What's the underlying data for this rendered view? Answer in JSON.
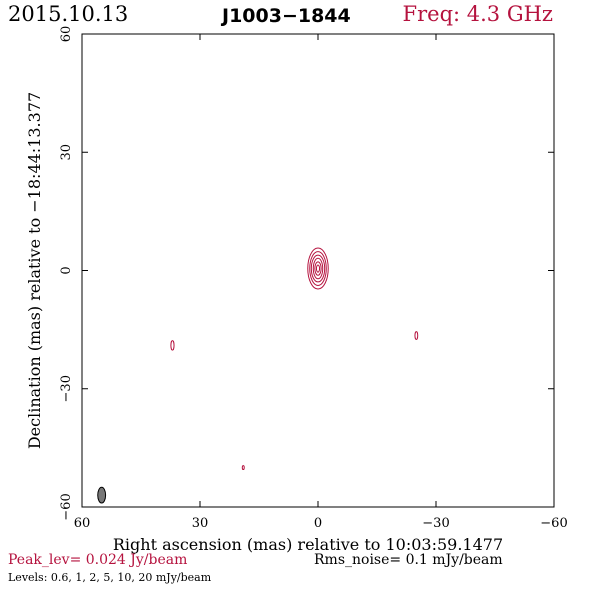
{
  "header": {
    "date": "2015.10.13",
    "source": "J1003−1844",
    "freq": "Freq: 4.3 GHz"
  },
  "colors": {
    "accent": "#b5123e",
    "axis": "#000000",
    "beam_fill": "#777777"
  },
  "chart_data": {
    "type": "contour",
    "xlabel": "Right ascension (mas) relative to 10:03:59.1477",
    "ylabel": "Declination (mas) relative to −18:44:13.377",
    "xlim": [
      60,
      -60
    ],
    "ylim": [
      -60,
      60
    ],
    "x_ticks": [
      60,
      30,
      0,
      -30,
      -60
    ],
    "y_ticks": [
      -60,
      -30,
      0,
      30,
      60
    ],
    "x_tick_labels": [
      "60",
      "30",
      "0",
      "−30",
      "−60"
    ],
    "y_tick_labels": [
      "−60",
      "−30",
      "0",
      "30",
      "60"
    ],
    "contour_levels_mJy": [
      0.6,
      1,
      2,
      5,
      10,
      20
    ],
    "components": [
      {
        "x": 0.0,
        "y": 0.5,
        "rx": [
          2.6,
          2.1,
          1.7,
          1.2,
          0.8,
          0.4
        ],
        "ry": [
          5.2,
          4.3,
          3.4,
          2.6,
          1.7,
          0.9
        ]
      },
      {
        "x": 37.0,
        "y": -19.0,
        "rx": [
          0.4
        ],
        "ry": [
          1.2
        ]
      },
      {
        "x": -25.0,
        "y": -16.5,
        "rx": [
          0.35
        ],
        "ry": [
          1.0
        ]
      },
      {
        "x": 19.0,
        "y": -50.0,
        "rx": [
          0.25
        ],
        "ry": [
          0.5
        ]
      }
    ],
    "beam": {
      "x": 55.0,
      "y": -57.0,
      "rx": 1.0,
      "ry": 2.0
    }
  },
  "footer": {
    "peak": "Peak_lev=  0.024 Jy/beam",
    "rms": "Rms_noise=   0.1 mJy/beam",
    "levels": "Levels: 0.6,    1,    2,    5,   10,   20 mJy/beam"
  }
}
